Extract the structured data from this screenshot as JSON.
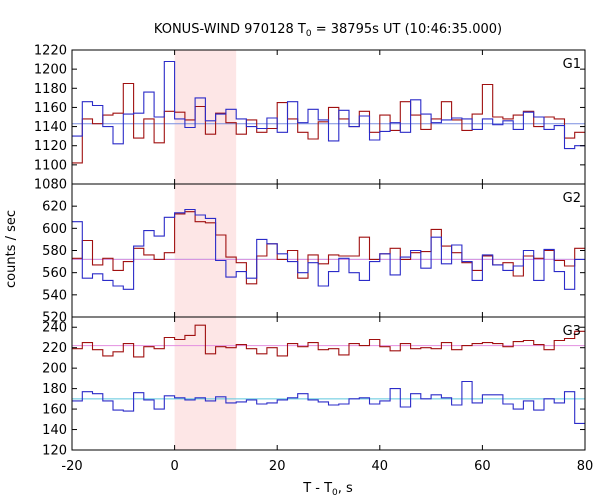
{
  "chart_data": {
    "type": "line",
    "title": "KONUS-WIND 970128 T",
    "title_sub": "0",
    "title_rest": " = 38795s UT (10:46:35.000)",
    "xlabel": "T - T",
    "xlabel_sub": "0",
    "xlabel_rest": ", s",
    "ylabel": "counts / sec",
    "xlim": [
      -20,
      80
    ],
    "x_ticks": [
      -20,
      0,
      20,
      40,
      60,
      80
    ],
    "bin_width": 2,
    "bin_start": -20,
    "highlight_interval": [
      0,
      12
    ],
    "colors": {
      "red": "#a01010",
      "blue": "#2b2bc8",
      "highlight": "#fde6e6",
      "bg_blue": "#7a8ee0",
      "bg_cyan": "#5ec8de",
      "bg_pink": "#e38ee0"
    },
    "panels": [
      {
        "label": "G1",
        "ylim": [
          1080,
          1220
        ],
        "y_ticks": [
          1080,
          1100,
          1120,
          1140,
          1160,
          1180,
          1200,
          1220
        ],
        "background": {
          "value": 1143,
          "color": "bg_blue"
        },
        "series": [
          {
            "color": "red",
            "values": [
              1102,
              1148,
              1143,
              1152,
              1154,
              1185,
              1128,
              1148,
              1123,
              1156,
              1155,
              1147,
              1161,
              1132,
              1154,
              1144,
              1132,
              1147,
              1134,
              1138,
              1165,
              1148,
              1134,
              1127,
              1145,
              1160,
              1148,
              1140,
              1156,
              1134,
              1152,
              1136,
              1166,
              1152,
              1137,
              1148,
              1166,
              1147,
              1136,
              1153,
              1184,
              1150,
              1148,
              1152,
              1156,
              1140,
              1150,
              1148,
              1128,
              1134
            ]
          },
          {
            "color": "blue",
            "values": [
              1130,
              1166,
              1162,
              1140,
              1122,
              1153,
              1154,
              1176,
              1150,
              1208,
              1148,
              1139,
              1170,
              1146,
              1153,
              1158,
              1148,
              1140,
              1138,
              1149,
              1134,
              1166,
              1144,
              1158,
              1147,
              1125,
              1157,
              1140,
              1151,
              1126,
              1135,
              1144,
              1134,
              1168,
              1153,
              1144,
              1147,
              1149,
              1148,
              1137,
              1148,
              1142,
              1146,
              1137,
              1155,
              1150,
              1137,
              1141,
              1117,
              1120
            ]
          }
        ]
      },
      {
        "label": "G2",
        "ylim": [
          520,
          640
        ],
        "y_ticks": [
          520,
          540,
          560,
          580,
          600,
          620
        ],
        "background": [
          {
            "value": 572,
            "color": "bg_cyan"
          },
          {
            "value": 572,
            "color": "bg_pink"
          }
        ],
        "series": [
          {
            "color": "red",
            "values": [
              573,
              589,
              567,
              573,
              562,
              570,
              582,
              576,
              572,
              578,
              613,
              615,
              606,
              605,
              594,
              574,
              569,
              550,
              575,
              586,
              572,
              580,
              555,
              576,
              568,
              576,
              575,
              575,
              592,
              572,
              577,
              582,
              572,
              578,
              579,
              599,
              584,
              578,
              569,
              562,
              575,
              567,
              569,
              557,
              575,
              573,
              580,
              571,
              566,
              582
            ]
          },
          {
            "color": "blue",
            "values": [
              606,
              555,
              559,
              553,
              548,
              545,
              584,
              598,
              593,
              610,
              614,
              617,
              612,
              609,
              571,
              556,
              561,
              555,
              590,
              586,
              577,
              570,
              560,
              569,
              548,
              561,
              573,
              560,
              553,
              570,
              577,
              558,
              574,
              580,
              564,
              592,
              568,
              585,
              570,
              553,
              576,
              567,
              562,
              566,
              580,
              553,
              581,
              561,
              545,
              572
            ]
          }
        ]
      },
      {
        "label": "G3",
        "ylim": [
          120,
          250
        ],
        "y_ticks": [
          120,
          140,
          160,
          180,
          200,
          220,
          240
        ],
        "background": [
          {
            "value": 170,
            "color": "bg_cyan"
          },
          {
            "value": 222,
            "color": "bg_pink"
          }
        ],
        "series": [
          {
            "color": "red",
            "values": [
              219,
              225,
              218,
              212,
              216,
              224,
              211,
              221,
              219,
              230,
              228,
              232,
              242,
              214,
              221,
              220,
              223,
              219,
              214,
              220,
              212,
              224,
              221,
              225,
              218,
              219,
              213,
              224,
              222,
              228,
              221,
              217,
              224,
              219,
              220,
              219,
              225,
              218,
              222,
              224,
              225,
              224,
              221,
              226,
              227,
              223,
              218,
              227,
              229,
              236
            ]
          },
          {
            "color": "blue",
            "values": [
              168,
              177,
              175,
              168,
              159,
              158,
              176,
              169,
              160,
              173,
              171,
              169,
              171,
              168,
              172,
              166,
              167,
              169,
              165,
              166,
              169,
              171,
              175,
              169,
              167,
              164,
              165,
              170,
              171,
              165,
              168,
              180,
              162,
              175,
              170,
              174,
              171,
              164,
              187,
              166,
              174,
              174,
              165,
              160,
              168,
              159,
              170,
              166,
              177,
              146
            ]
          }
        ]
      }
    ]
  }
}
